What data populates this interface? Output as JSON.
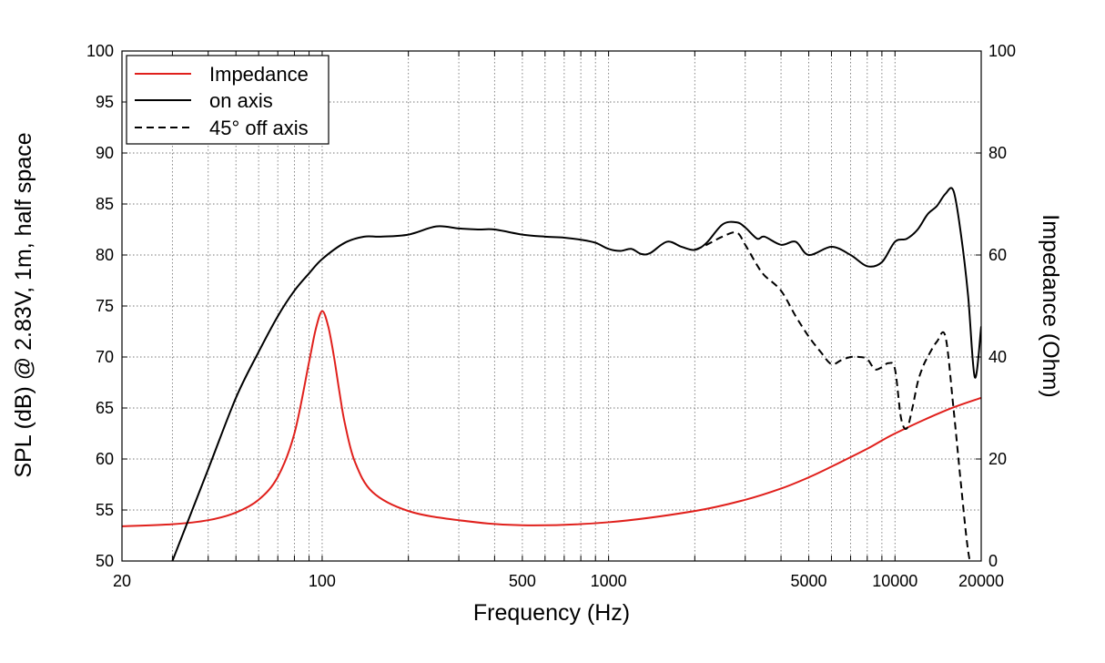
{
  "chart_data": {
    "type": "line",
    "xlabel": "Frequency (Hz)",
    "ylabel": "SPL (dB) @ 2.83V, 1m, half space",
    "y2label": "Impedance (Ohm)",
    "x_scale": "log",
    "xlim": [
      20,
      20000
    ],
    "ylim": [
      50,
      100
    ],
    "y2lim": [
      0,
      100
    ],
    "grid": true,
    "legend_position": "top-left",
    "x_tick_labels": [
      "20",
      "100",
      "500",
      "1000",
      "5000",
      "10000",
      "20000"
    ],
    "y_tick_labels": [
      "50",
      "55",
      "60",
      "65",
      "70",
      "75",
      "80",
      "85",
      "90",
      "95",
      "100"
    ],
    "y2_tick_labels": [
      "0",
      "20",
      "40",
      "60",
      "80",
      "100"
    ],
    "series": [
      {
        "name": "Impedance",
        "axis": "right",
        "color": "#e0201c",
        "style": "solid",
        "x": [
          20,
          30,
          40,
          50,
          60,
          70,
          80,
          90,
          95,
          100,
          105,
          110,
          115,
          120,
          130,
          150,
          200,
          300,
          500,
          1000,
          2000,
          3000,
          4000,
          5000,
          6000,
          8000,
          10000,
          15000,
          20000
        ],
        "y": [
          6.8,
          7.2,
          8.0,
          9.5,
          12.0,
          16.5,
          25.0,
          39.0,
          45.5,
          49.0,
          46.0,
          40.0,
          33.0,
          27.0,
          19.5,
          13.5,
          9.8,
          8.0,
          7.0,
          7.6,
          9.8,
          12.0,
          14.2,
          16.4,
          18.5,
          22.0,
          25.0,
          29.5,
          32.0
        ]
      },
      {
        "name": "on axis",
        "axis": "left",
        "color": "#000000",
        "style": "solid",
        "x": [
          30,
          40,
          50,
          60,
          70,
          80,
          90,
          100,
          120,
          140,
          160,
          200,
          250,
          300,
          350,
          400,
          500,
          600,
          700,
          800,
          900,
          1000,
          1100,
          1200,
          1300,
          1400,
          1600,
          1800,
          2000,
          2200,
          2500,
          2800,
          3000,
          3300,
          3500,
          4000,
          4500,
          5000,
          6000,
          7000,
          8000,
          9000,
          10000,
          11000,
          12000,
          13000,
          14000,
          15000,
          16000,
          17000,
          18000,
          19000,
          20000
        ],
        "y": [
          50.0,
          59.0,
          66.0,
          70.5,
          74.0,
          76.5,
          78.2,
          79.6,
          81.2,
          81.8,
          81.8,
          82.0,
          82.8,
          82.6,
          82.5,
          82.5,
          82.0,
          81.8,
          81.7,
          81.5,
          81.2,
          80.6,
          80.4,
          80.6,
          80.1,
          80.2,
          81.3,
          80.8,
          80.5,
          81.2,
          83.0,
          83.2,
          82.7,
          81.6,
          81.8,
          81.0,
          81.3,
          80.0,
          80.8,
          80.0,
          78.9,
          79.3,
          81.3,
          81.6,
          82.5,
          84.0,
          84.8,
          86.0,
          86.3,
          82.0,
          76.0,
          68.0,
          73.0
        ]
      },
      {
        "name": "45° off axis",
        "axis": "left",
        "color": "#000000",
        "style": "dashed",
        "x": [
          2000,
          2200,
          2500,
          2800,
          3000,
          3300,
          3500,
          4000,
          4500,
          5000,
          5500,
          6000,
          6500,
          7000,
          7500,
          8000,
          8500,
          9000,
          9500,
          10000,
          10500,
          11000,
          11500,
          12000,
          12500,
          13000,
          14000,
          15000,
          16000,
          17000,
          18000,
          19000
        ],
        "y": [
          80.5,
          81.0,
          81.8,
          82.2,
          81.0,
          79.0,
          78.0,
          76.5,
          74.0,
          72.0,
          70.5,
          69.3,
          69.7,
          70.0,
          70.0,
          69.8,
          68.8,
          69.0,
          69.4,
          68.8,
          64.0,
          63.0,
          65.0,
          67.5,
          69.0,
          70.0,
          71.5,
          72.0,
          65.0,
          57.5,
          51.0,
          48.0
        ]
      }
    ]
  }
}
